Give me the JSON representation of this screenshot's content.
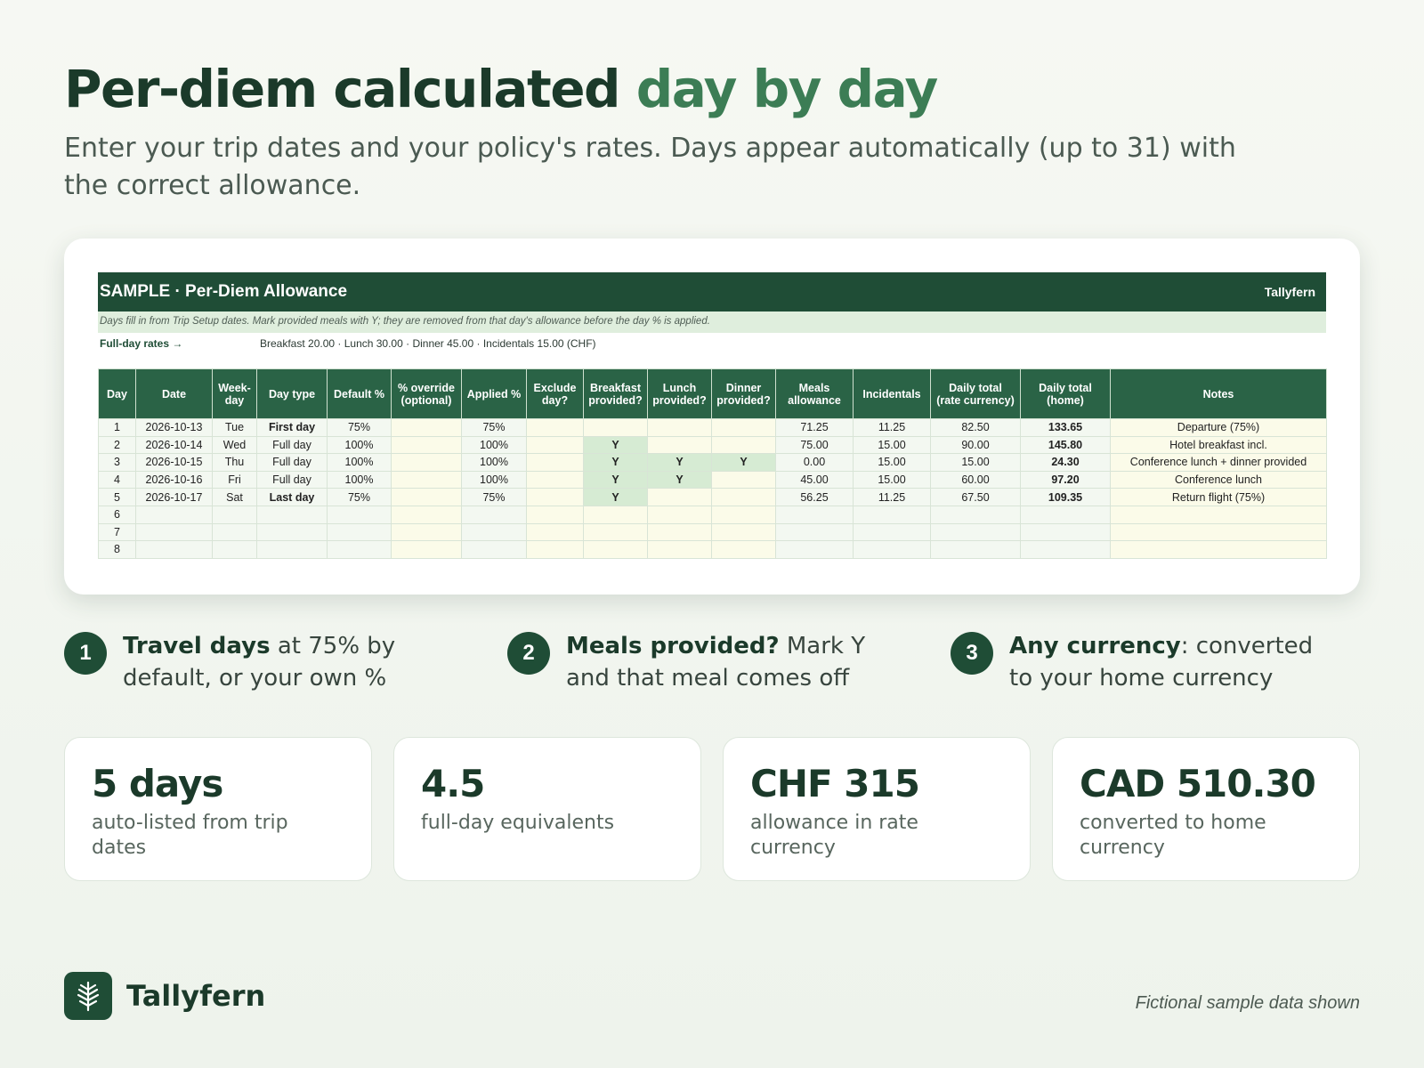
{
  "header": {
    "title_part1": "Per-diem calculated ",
    "title_accent": "day by day",
    "subtitle": "Enter your trip dates and your policy's rates. Days appear automatically (up to 31) with the correct allowance."
  },
  "sheet": {
    "title": "SAMPLE · Per-Diem Allowance",
    "brand": "Tallyfern",
    "note": "Days fill in from Trip Setup dates. Mark provided meals with Y; they are removed from that day's allowance before the day % is applied.",
    "rates_label": "Full-day rates →",
    "rates_values": "Breakfast 20.00  ·  Lunch 30.00  ·  Dinner 45.00  ·  Incidentals 15.00  (CHF)",
    "columns": [
      "Day",
      "Date",
      "Week-\nday",
      "Day type",
      "Default %",
      "% override\n(optional)",
      "Applied %",
      "Exclude\nday?",
      "Breakfast\nprovided?",
      "Lunch\nprovided?",
      "Dinner\nprovided?",
      "Meals\nallowance",
      "Incidentals",
      "Daily total\n(rate currency)",
      "Daily total\n(home)",
      "Notes"
    ],
    "rows": [
      [
        "1",
        "2026-10-13",
        "Tue",
        "First day",
        "75%",
        "",
        "75%",
        "",
        "",
        "",
        "",
        "71.25",
        "11.25",
        "82.50",
        "133.65",
        "Departure (75%)"
      ],
      [
        "2",
        "2026-10-14",
        "Wed",
        "Full day",
        "100%",
        "",
        "100%",
        "",
        "Y",
        "",
        "",
        "75.00",
        "15.00",
        "90.00",
        "145.80",
        "Hotel breakfast incl."
      ],
      [
        "3",
        "2026-10-15",
        "Thu",
        "Full day",
        "100%",
        "",
        "100%",
        "",
        "Y",
        "Y",
        "Y",
        "0.00",
        "15.00",
        "15.00",
        "24.30",
        "Conference lunch + dinner provided"
      ],
      [
        "4",
        "2026-10-16",
        "Fri",
        "Full day",
        "100%",
        "",
        "100%",
        "",
        "Y",
        "Y",
        "",
        "45.00",
        "15.00",
        "60.00",
        "97.20",
        "Conference lunch"
      ],
      [
        "5",
        "2026-10-17",
        "Sat",
        "Last day",
        "75%",
        "",
        "75%",
        "",
        "Y",
        "",
        "",
        "56.25",
        "11.25",
        "67.50",
        "109.35",
        "Return flight (75%)"
      ],
      [
        "6",
        "",
        "",
        "",
        "",
        "",
        "",
        "",
        "",
        "",
        "",
        "",
        "",
        "",
        "",
        ""
      ],
      [
        "7",
        "",
        "",
        "",
        "",
        "",
        "",
        "",
        "",
        "",
        "",
        "",
        "",
        "",
        "",
        ""
      ],
      [
        "8",
        "",
        "",
        "",
        "",
        "",
        "",
        "",
        "",
        "",
        "",
        "",
        "",
        "",
        "",
        ""
      ]
    ]
  },
  "callouts": [
    {
      "number": "1",
      "bold": "Travel days",
      "text": " at 75% by default, or your own %"
    },
    {
      "number": "2",
      "bold": "Meals provided?",
      "text": " Mark Y and that meal comes off"
    },
    {
      "number": "3",
      "bold": "Any currency",
      "text": ": converted to your home currency"
    }
  ],
  "stats": [
    {
      "value": "5 days",
      "label": "auto-listed from trip dates"
    },
    {
      "value": "4.5",
      "label": "full-day equivalents"
    },
    {
      "value": "CHF 315",
      "label": "allowance in rate currency"
    },
    {
      "value": "CAD 510.30",
      "label": "converted to home currency"
    }
  ],
  "footer": {
    "brand": "Tallyfern",
    "note": "Fictional sample data shown",
    "logo_icon": "fern-leaf-icon"
  },
  "colors": {
    "brand_dark": "#1f4d36",
    "accent": "#3c7d55",
    "provided_cell": "#d6ebd3",
    "input_cell": "#fbfbe9"
  }
}
